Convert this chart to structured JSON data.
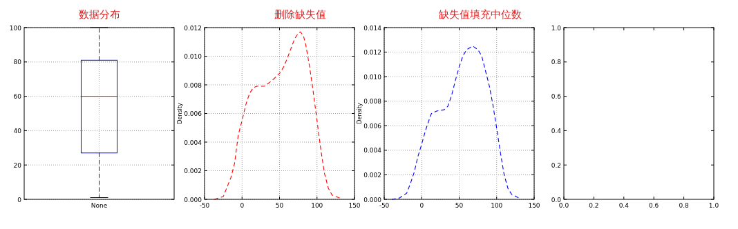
{
  "chart_data": [
    {
      "type": "box",
      "title": "数据分布",
      "categories": [
        "None"
      ],
      "color": "#0000ff",
      "boxes": [
        {
          "low": 1,
          "q1": 27,
          "median": 60,
          "q3": 81,
          "high": 100
        }
      ],
      "ylim": [
        0,
        100
      ],
      "yticks": [
        0,
        20,
        40,
        60,
        80,
        100
      ],
      "grid": true
    },
    {
      "type": "line",
      "title": "删除缺失值",
      "ylabel": "Density",
      "line_style": "dashed",
      "grid": true,
      "xlim": [
        -50,
        150
      ],
      "xticks": [
        -50,
        0,
        50,
        100,
        150
      ],
      "ylim": [
        0,
        0.012
      ],
      "yticks": [
        {
          "value": 0,
          "label": "0.000"
        },
        {
          "value": 0.002,
          "label": "0.002"
        },
        {
          "value": 0.004,
          "label": "0.004"
        },
        {
          "value": 0.006,
          "label": "0.006"
        },
        {
          "value": 0.008,
          "label": "0.008"
        },
        {
          "value": 0.01,
          "label": "0.010"
        },
        {
          "value": 0.012,
          "label": "0.012"
        }
      ],
      "series": [
        {
          "color": "#ff0000",
          "x": [
            -37,
            -25,
            -15,
            -10,
            -5,
            0,
            5,
            10,
            15,
            20,
            30,
            40,
            50,
            55,
            60,
            65,
            70,
            75,
            78,
            82,
            85,
            90,
            95,
            100,
            105,
            110,
            115,
            120,
            130
          ],
          "values": [
            0,
            0.0002,
            0.0015,
            0.0025,
            0.0045,
            0.0055,
            0.0066,
            0.0074,
            0.0078,
            0.0079,
            0.0079,
            0.0083,
            0.0088,
            0.0092,
            0.0098,
            0.0105,
            0.0112,
            0.0116,
            0.0117,
            0.0114,
            0.0108,
            0.0093,
            0.0075,
            0.0055,
            0.0035,
            0.0018,
            0.0008,
            0.0003,
            0.0001
          ]
        }
      ]
    },
    {
      "type": "line",
      "title": "缺失值填充中位数",
      "ylabel": "Density",
      "line_style": "dashed",
      "grid": true,
      "xlim": [
        -50,
        150
      ],
      "xticks": [
        -50,
        0,
        50,
        100,
        150
      ],
      "ylim": [
        0,
        0.014
      ],
      "yticks": [
        {
          "value": 0,
          "label": "0.000"
        },
        {
          "value": 0.002,
          "label": "0.002"
        },
        {
          "value": 0.004,
          "label": "0.004"
        },
        {
          "value": 0.006,
          "label": "0.006"
        },
        {
          "value": 0.008,
          "label": "0.008"
        },
        {
          "value": 0.01,
          "label": "0.010"
        },
        {
          "value": 0.012,
          "label": "0.012"
        },
        {
          "value": 0.014,
          "label": "0.014"
        }
      ],
      "series": [
        {
          "color": "#0000ff",
          "x": [
            -40,
            -30,
            -20,
            -15,
            -10,
            -5,
            0,
            5,
            10,
            13,
            20,
            30,
            35,
            40,
            45,
            50,
            55,
            60,
            68,
            75,
            80,
            85,
            90,
            95,
            100,
            105,
            110,
            115,
            120,
            130
          ],
          "values": [
            0,
            0.0001,
            0.0005,
            0.0013,
            0.0022,
            0.0035,
            0.0045,
            0.0056,
            0.0065,
            0.007,
            0.0072,
            0.0073,
            0.0076,
            0.0085,
            0.0097,
            0.0108,
            0.0117,
            0.0122,
            0.0125,
            0.0122,
            0.0117,
            0.0105,
            0.0093,
            0.0077,
            0.0058,
            0.0038,
            0.002,
            0.0009,
            0.0004,
            0.0001
          ]
        }
      ]
    },
    {
      "type": "line",
      "xlim": [
        0,
        1
      ],
      "xticks": [
        {
          "value": 0,
          "label": "0.0"
        },
        0.2,
        0.4,
        0.6,
        0.8,
        {
          "value": 1,
          "label": "1.0"
        }
      ],
      "ylim": [
        0,
        1
      ],
      "yticks": [
        {
          "value": 0,
          "label": "0.0"
        },
        0.2,
        0.4,
        0.6,
        0.8,
        {
          "value": 1,
          "label": "1.0"
        }
      ]
    }
  ]
}
